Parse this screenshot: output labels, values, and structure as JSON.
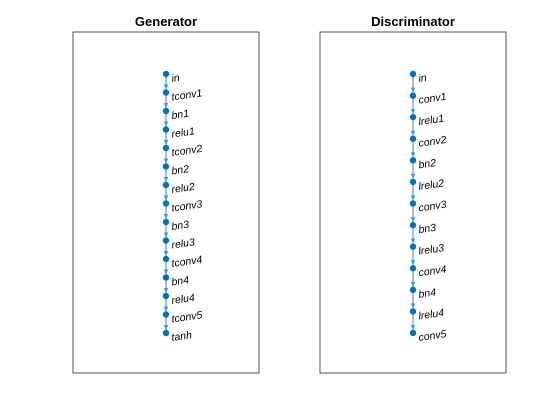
{
  "colors": {
    "node": "#0072BD",
    "edge": "#4a90d9",
    "frame": "#262626",
    "text": "#000000"
  },
  "panels": [
    {
      "title": "Generator",
      "nodes": [
        "in",
        "tconv1",
        "bn1",
        "relu1",
        "tconv2",
        "bn2",
        "relu2",
        "tconv3",
        "bn3",
        "relu3",
        "tconv4",
        "bn4",
        "relu4",
        "tconv5",
        "tanh"
      ]
    },
    {
      "title": "Discriminator",
      "nodes": [
        "in",
        "conv1",
        "lrelu1",
        "conv2",
        "bn2",
        "lrelu2",
        "conv3",
        "bn3",
        "lrelu3",
        "conv4",
        "bn4",
        "lrelu4",
        "conv5"
      ]
    }
  ]
}
